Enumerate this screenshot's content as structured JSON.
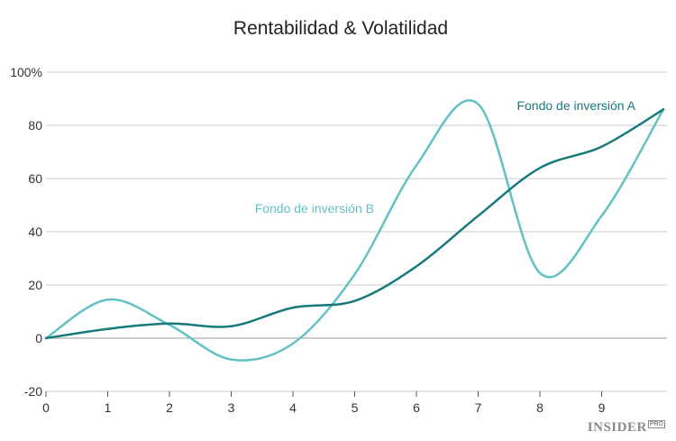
{
  "chart_data": {
    "type": "line",
    "title": "Rentabilidad & Volatilidad",
    "xlabel": "",
    "ylabel": "",
    "x_ticks": [
      "0",
      "1",
      "2",
      "3",
      "4",
      "5",
      "6",
      "7",
      "8",
      "9"
    ],
    "y_ticks": [
      "100%",
      "80",
      "60",
      "40",
      "20",
      "0",
      "-20"
    ],
    "xlim": [
      0,
      10.1
    ],
    "ylim": [
      -20,
      100
    ],
    "grid": true,
    "series": [
      {
        "name": "Fondo de inversión A",
        "color": "#17797c",
        "x": [
          0,
          1,
          2,
          3,
          4,
          5,
          6,
          7,
          8,
          9,
          10
        ],
        "y": [
          0,
          3.5,
          5.5,
          4.5,
          11.5,
          14,
          27,
          46,
          64,
          72,
          86
        ]
      },
      {
        "name": "Fondo de inversión B",
        "color": "#64c0c7",
        "x": [
          0,
          1,
          2,
          3,
          4,
          5,
          6,
          7,
          8,
          9,
          10
        ],
        "y": [
          0,
          14.5,
          5,
          -8,
          -2,
          24,
          65,
          88,
          24.5,
          46,
          86
        ]
      }
    ]
  },
  "branding": {
    "name": "INSIDER",
    "badge": "PRO"
  }
}
